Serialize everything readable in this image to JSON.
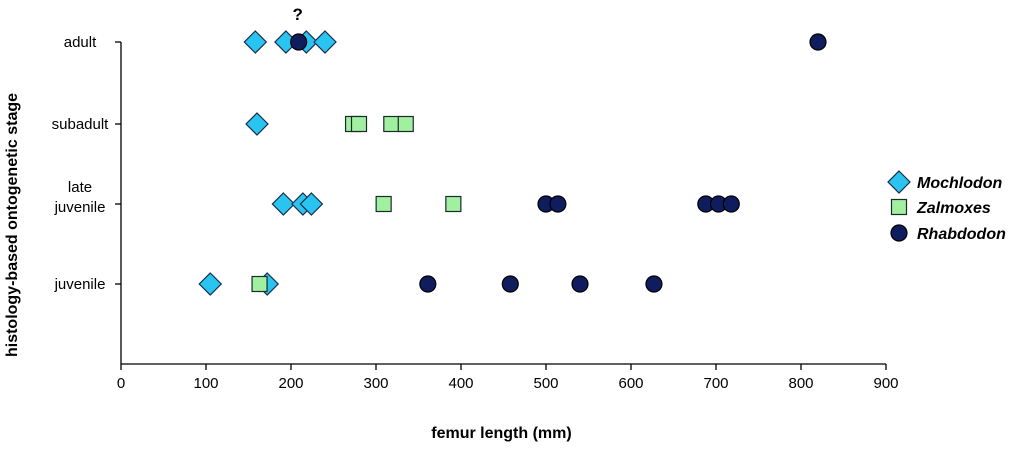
{
  "chart_data": {
    "type": "scatter",
    "title": "",
    "xlabel": "femur length (mm)",
    "ylabel": "histology-based ontogenetic stage",
    "xlim": [
      0,
      900
    ],
    "xticks": [
      "0",
      "100",
      "200",
      "300",
      "400",
      "500",
      "600",
      "700",
      "800",
      "900"
    ],
    "categories": [
      "juvenile",
      "late juvenile",
      "subadult",
      "adult"
    ],
    "category_lines": [
      [
        "juvenile"
      ],
      [
        "late",
        "juvenile"
      ],
      [
        "subadult"
      ],
      [
        "adult"
      ]
    ],
    "grid": false,
    "legend_position": "right",
    "series": [
      {
        "name": "Mochlodon",
        "marker": "diamond",
        "color": "#29c4f0",
        "points": [
          {
            "x": 105,
            "y": "juvenile"
          },
          {
            "x": 172,
            "y": "juvenile"
          },
          {
            "x": 191,
            "y": "late juvenile"
          },
          {
            "x": 214,
            "y": "late juvenile"
          },
          {
            "x": 224,
            "y": "late juvenile"
          },
          {
            "x": 160,
            "y": "subadult"
          },
          {
            "x": 158,
            "y": "adult"
          },
          {
            "x": 194,
            "y": "adult"
          },
          {
            "x": 218,
            "y": "adult"
          },
          {
            "x": 240,
            "y": "adult"
          }
        ]
      },
      {
        "name": "Zalmoxes",
        "marker": "square",
        "color": "#a0f0a0",
        "points": [
          {
            "x": 163,
            "y": "juvenile"
          },
          {
            "x": 309,
            "y": "late juvenile"
          },
          {
            "x": 391,
            "y": "late juvenile"
          },
          {
            "x": 273,
            "y": "subadult"
          },
          {
            "x": 280,
            "y": "subadult"
          },
          {
            "x": 318,
            "y": "subadult"
          },
          {
            "x": 335,
            "y": "subadult"
          }
        ]
      },
      {
        "name": "Rhabdodon",
        "marker": "circle",
        "color": "#0f1c5e",
        "points": [
          {
            "x": 361,
            "y": "juvenile"
          },
          {
            "x": 458,
            "y": "juvenile"
          },
          {
            "x": 540,
            "y": "juvenile"
          },
          {
            "x": 627,
            "y": "juvenile"
          },
          {
            "x": 500,
            "y": "late juvenile"
          },
          {
            "x": 514,
            "y": "late juvenile"
          },
          {
            "x": 688,
            "y": "late juvenile"
          },
          {
            "x": 703,
            "y": "late juvenile"
          },
          {
            "x": 718,
            "y": "late juvenile"
          },
          {
            "x": 209,
            "y": "adult"
          },
          {
            "x": 820,
            "y": "adult"
          }
        ]
      }
    ],
    "annotations": [
      {
        "text": "?",
        "x": 209,
        "y": "adult"
      }
    ]
  }
}
